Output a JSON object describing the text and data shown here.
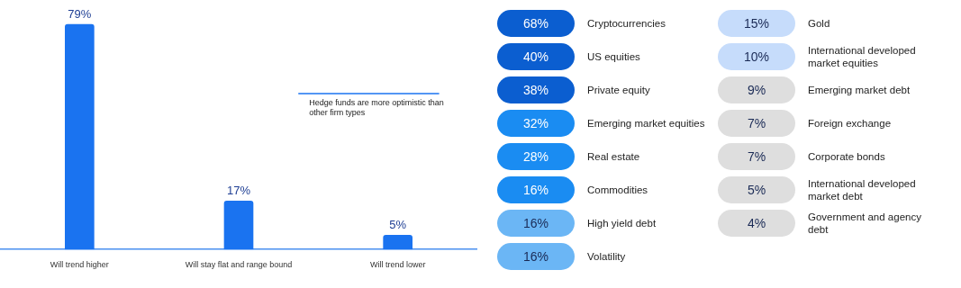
{
  "chart_data": [
    {
      "type": "bar",
      "categories": [
        "Will trend higher",
        "Will stay flat and range bound",
        "Will trend lower"
      ],
      "values": [
        79,
        17,
        5
      ],
      "value_labels": [
        "79%",
        "17%",
        "5%"
      ],
      "color": "#1a73f0",
      "annotations": [
        "Hedge funds are more optimistic than other firm types"
      ]
    },
    {
      "type": "other",
      "categories": [
        "Cryptocurrencies",
        "US equities",
        "Private equity",
        "Emerging market equities",
        "Real estate",
        "Commodities",
        "High yield debt",
        "Volatility",
        "Gold",
        "International developed market equities",
        "Emerging market debt",
        "Foreign exchange",
        "Corporate bonds",
        "International developed market debt",
        "Government and agency debt"
      ],
      "values": [
        68,
        40,
        38,
        32,
        28,
        16,
        16,
        16,
        15,
        10,
        9,
        7,
        7,
        5,
        4
      ],
      "value_labels": [
        "68%",
        "40%",
        "38%",
        "32%",
        "28%",
        "16%",
        "16%",
        "16%",
        "15%",
        "10%",
        "9%",
        "7%",
        "7%",
        "5%",
        "4%"
      ],
      "colors": [
        "#0b5ed0",
        "#0b5ed0",
        "#0b5ed0",
        "#1a8cf2",
        "#1a8cf2",
        "#1a8cf2",
        "#6bb6f5",
        "#6bb6f5",
        "#c6dcfb",
        "#c6dcfb",
        "#dedede",
        "#dedede",
        "#dedede",
        "#dedede",
        "#dedede"
      ]
    }
  ]
}
